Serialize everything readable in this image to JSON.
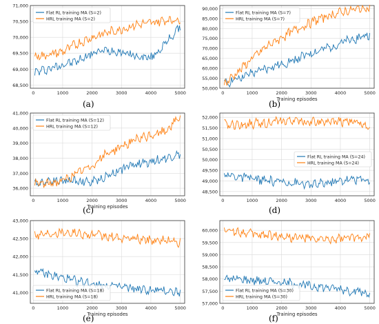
{
  "colors": {
    "flat": "#1f77b4",
    "hrl": "#ff7f0e",
    "grid": "#d9d9d9",
    "axis": "#333333"
  },
  "chart_data": [
    {
      "type": "line",
      "caption": "(a)",
      "xlabel": "",
      "xlim": [
        -100,
        5150
      ],
      "ylim": [
        68400,
        71000
      ],
      "xticks": [
        0,
        1000,
        2000,
        3000,
        4000,
        5000
      ],
      "yticks": [
        68500,
        69000,
        69500,
        70000,
        70500,
        71000
      ],
      "ytick_labels": [
        "68,500",
        "69,000",
        "69,500",
        "70,000",
        "70,500",
        "71,000"
      ],
      "legend": "top-left",
      "x": [
        50,
        500,
        1000,
        1500,
        2000,
        2500,
        3000,
        3500,
        4000,
        4500,
        5000
      ],
      "series": [
        {
          "name": "Flat RL training MA (S=2)",
          "color": "flat",
          "values": [
            68900,
            69000,
            69150,
            69250,
            69500,
            69600,
            69550,
            69400,
            69350,
            69800,
            70350
          ]
        },
        {
          "name": "HRL training MA (S=2)",
          "color": "hrl",
          "values": [
            69400,
            69450,
            69550,
            69800,
            70000,
            70150,
            70250,
            70400,
            70450,
            70550,
            70550
          ]
        }
      ]
    },
    {
      "type": "line",
      "caption": "(b)",
      "xlabel": "Training episodes",
      "xlim": [
        -100,
        5150
      ],
      "ylim": [
        50000,
        91500
      ],
      "xticks": [
        0,
        1000,
        2000,
        3000,
        4000,
        5000
      ],
      "yticks": [
        50000,
        55000,
        60000,
        65000,
        70000,
        75000,
        80000,
        85000,
        90000
      ],
      "ytick_labels": [
        "50,000",
        "55,000",
        "60,000",
        "65,000",
        "70,000",
        "75,000",
        "80,000",
        "85,000",
        "90,000"
      ],
      "legend": "top-left",
      "x": [
        50,
        500,
        1000,
        1500,
        2000,
        2500,
        3000,
        3500,
        4000,
        4500,
        5000
      ],
      "series": [
        {
          "name": "Flat RL training MA (S=7)",
          "color": "flat",
          "values": [
            52000,
            55000,
            57500,
            60000,
            62000,
            64500,
            67500,
            70000,
            72500,
            75000,
            77000
          ]
        },
        {
          "name": "HRL training MA (S=7)",
          "color": "hrl",
          "values": [
            52000,
            58000,
            65000,
            71000,
            75500,
            79500,
            83000,
            86000,
            88000,
            89500,
            90500
          ]
        }
      ]
    },
    {
      "type": "line",
      "caption": "(c)",
      "xlabel": "Training episodes",
      "xlim": [
        -100,
        5150
      ],
      "ylim": [
        35500,
        41000
      ],
      "xticks": [
        0,
        1000,
        2000,
        3000,
        4000,
        5000
      ],
      "yticks": [
        36000,
        37000,
        38000,
        39000,
        40000,
        41000
      ],
      "ytick_labels": [
        "36,000",
        "37,000",
        "38,000",
        "39,000",
        "40,000",
        "41,000"
      ],
      "legend": "top-left",
      "x": [
        50,
        500,
        1000,
        1500,
        2000,
        2500,
        3000,
        3500,
        4000,
        4500,
        5000
      ],
      "series": [
        {
          "name": "Flat RL training MA (S=12)",
          "color": "flat",
          "values": [
            36300,
            36500,
            36500,
            36500,
            36400,
            36800,
            37300,
            37600,
            37800,
            38000,
            38300
          ]
        },
        {
          "name": "HRL training MA (S=12)",
          "color": "hrl",
          "values": [
            36300,
            36300,
            36500,
            37000,
            37500,
            38300,
            38800,
            39200,
            39500,
            39800,
            40800
          ]
        }
      ]
    },
    {
      "type": "line",
      "caption": "(d)",
      "xlabel": "",
      "xlim": [
        -100,
        5150
      ],
      "ylim": [
        48300,
        52200
      ],
      "xticks": [
        0,
        1000,
        2000,
        3000,
        4000,
        5000
      ],
      "yticks": [
        48500,
        49000,
        49500,
        50000,
        50500,
        51000,
        51500,
        52000
      ],
      "ytick_labels": [
        "48,500",
        "49,000",
        "49,500",
        "50,000",
        "50,500",
        "51,000",
        "51,500",
        "52,000"
      ],
      "legend": "middle-right",
      "x": [
        50,
        500,
        1000,
        1500,
        2000,
        2500,
        3000,
        3500,
        4000,
        4500,
        5000
      ],
      "series": [
        {
          "name": "Flat RL training MA (S=24)",
          "color": "flat",
          "values": [
            49300,
            49200,
            49100,
            49000,
            48950,
            48900,
            48800,
            48900,
            49000,
            49100,
            49050
          ]
        },
        {
          "name": "HRL training MA (S=24)",
          "color": "hrl",
          "values": [
            51650,
            51650,
            51700,
            51750,
            51800,
            51850,
            51800,
            51750,
            51800,
            51800,
            51600
          ]
        }
      ]
    },
    {
      "type": "line",
      "caption": "(e)",
      "xlabel": "Training episodes",
      "xlim": [
        -100,
        5150
      ],
      "ylim": [
        40700,
        43000
      ],
      "xticks": [
        0,
        1000,
        2000,
        3000,
        4000,
        5000
      ],
      "yticks": [
        41000,
        41500,
        42000,
        42500,
        43000
      ],
      "ytick_labels": [
        "41,000",
        "41,500",
        "42,000",
        "42,500",
        "43,000"
      ],
      "legend": "bottom-left",
      "x": [
        50,
        500,
        1000,
        1500,
        2000,
        2500,
        3000,
        3500,
        4000,
        4500,
        5000
      ],
      "series": [
        {
          "name": "Flat RL training MA (S=18)",
          "color": "flat",
          "values": [
            41600,
            41500,
            41400,
            41300,
            41250,
            41200,
            41150,
            41100,
            41050,
            41050,
            41000
          ]
        },
        {
          "name": "HRL training MA (S=18)",
          "color": "hrl",
          "values": [
            42600,
            42650,
            42700,
            42650,
            42600,
            42550,
            42500,
            42500,
            42450,
            42450,
            42400
          ]
        }
      ]
    },
    {
      "type": "line",
      "caption": "(f)",
      "xlabel": "Training episodes",
      "xlim": [
        -100,
        5150
      ],
      "ylim": [
        57000,
        60400
      ],
      "xticks": [
        0,
        1000,
        2000,
        3000,
        4000,
        5000
      ],
      "yticks": [
        57000,
        57500,
        58000,
        58500,
        59000,
        59500,
        60000
      ],
      "ytick_labels": [
        "57,000",
        "57,500",
        "58,000",
        "58,500",
        "59,000",
        "59,500",
        "60,000"
      ],
      "legend": "bottom-left",
      "x": [
        50,
        500,
        1000,
        1500,
        2000,
        2500,
        3000,
        3500,
        4000,
        4500,
        5000
      ],
      "series": [
        {
          "name": "Flat RL training MA (S=30)",
          "color": "flat",
          "values": [
            58000,
            58000,
            57950,
            57900,
            57850,
            57800,
            57700,
            57650,
            57600,
            57500,
            57400
          ]
        },
        {
          "name": "HRL training MA (S=30)",
          "color": "hrl",
          "values": [
            60000,
            59950,
            59850,
            59800,
            59750,
            59700,
            59650,
            59600,
            59650,
            59700,
            59800
          ]
        }
      ]
    }
  ]
}
